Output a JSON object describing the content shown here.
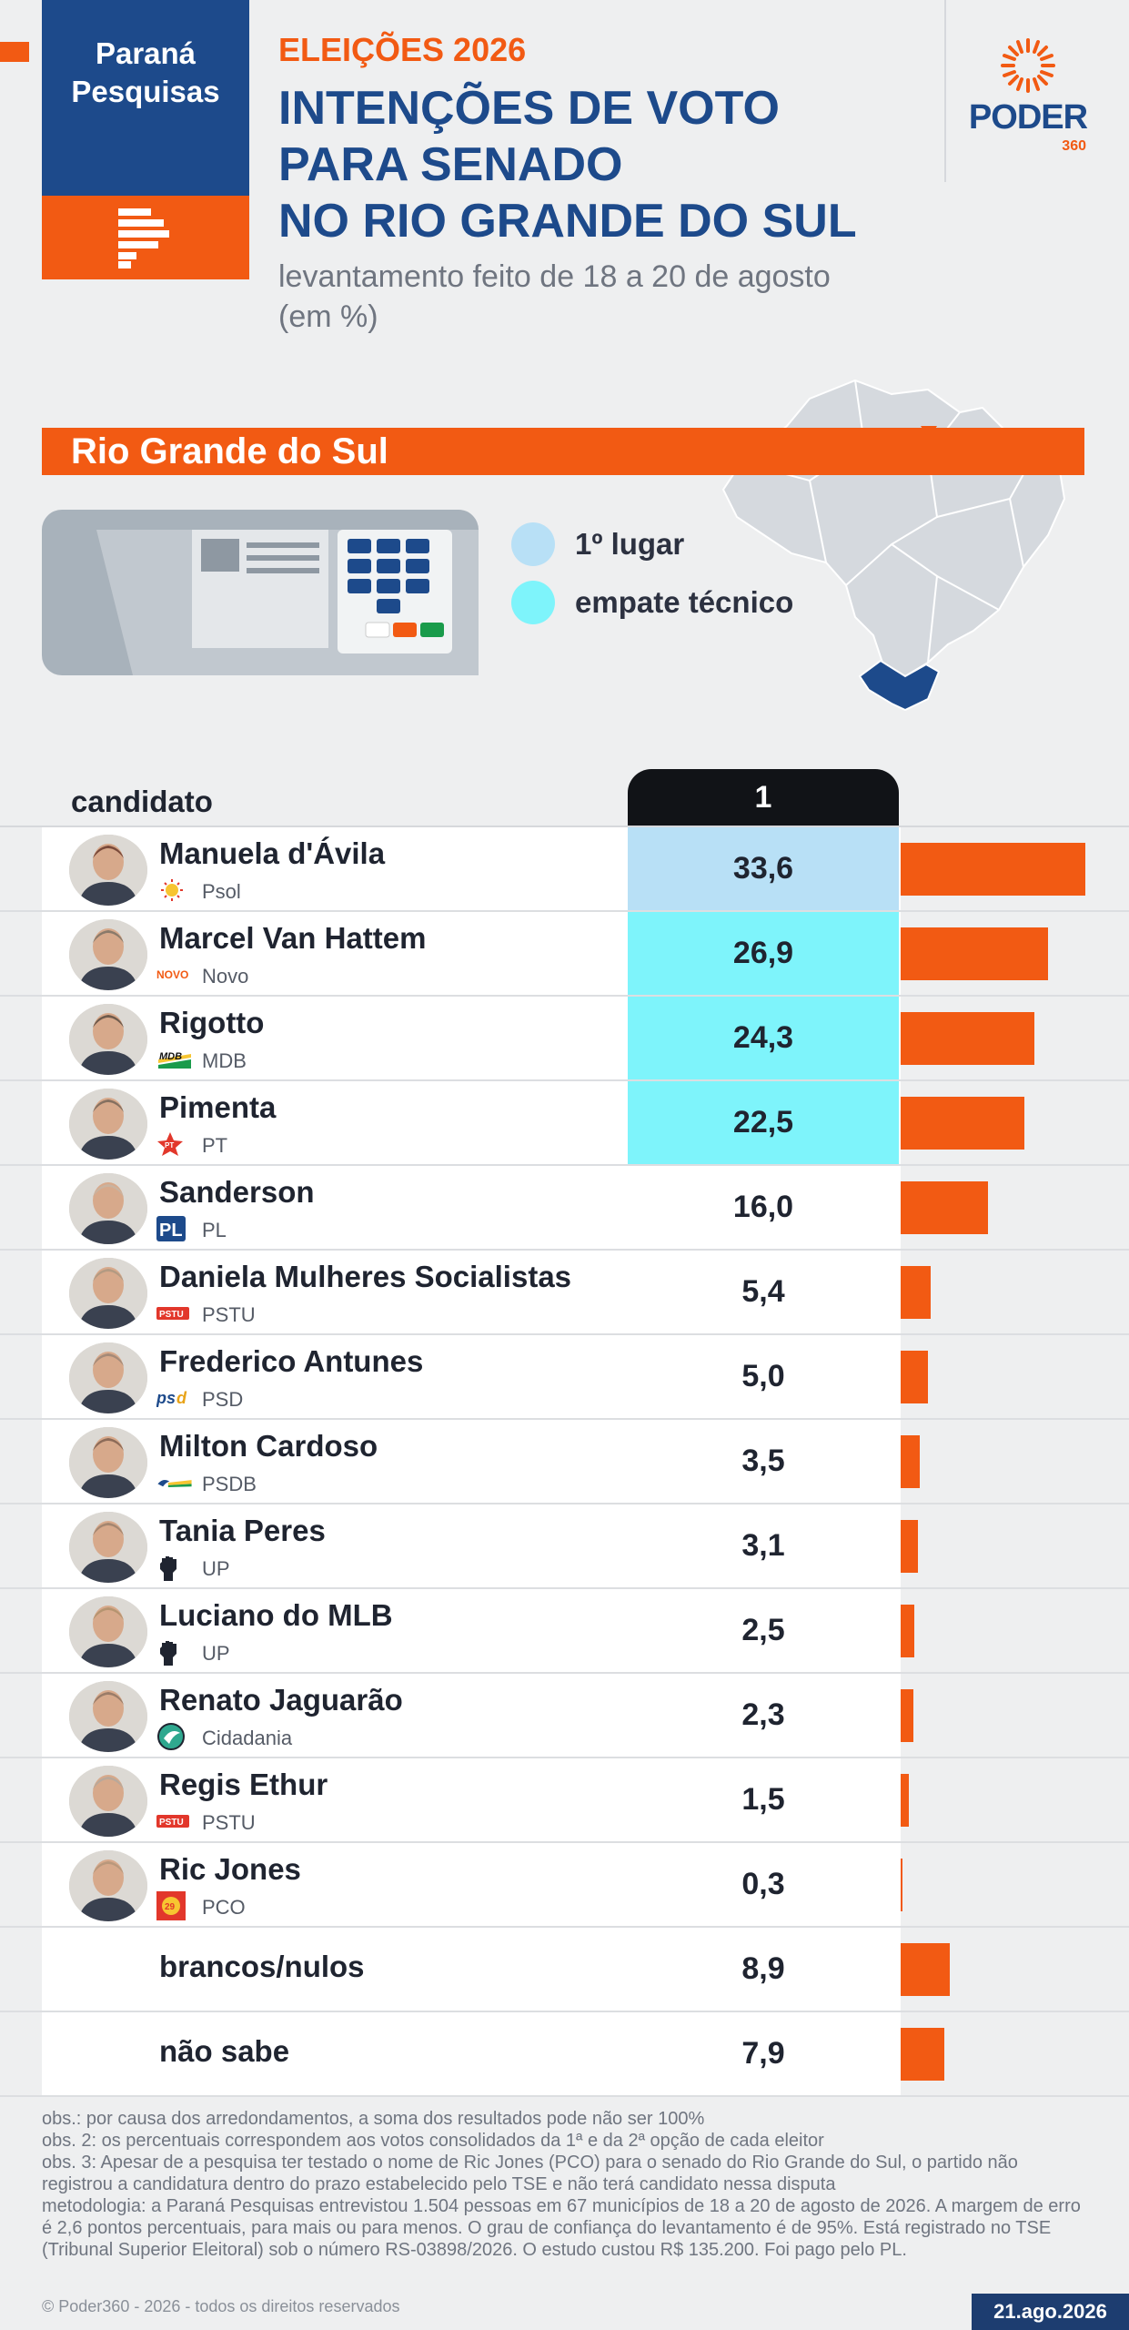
{
  "header": {
    "pollster_line1": "Paraná",
    "pollster_line2": "Pesquisas",
    "kicker": "ELEIÇÕES 2026",
    "title_lines": [
      "INTENÇÕES DE VOTO",
      "PARA SENADO",
      "NO RIO GRANDE DO SUL"
    ],
    "subtitle_lines": [
      "levantamento feito de 18 a 20 de agosto",
      "(em %)"
    ],
    "publisher": "PODER",
    "publisher_suffix": "360"
  },
  "region": "Rio Grande do Sul",
  "legend": [
    {
      "label": "1º lugar",
      "color": "#b8e0f6"
    },
    {
      "label": "empate técnico",
      "color": "#7ef4fb"
    }
  ],
  "table": {
    "column_label": "candidato",
    "round_label": "1"
  },
  "colors": {
    "accent": "#f25a13",
    "brand_blue": "#1d4a8b",
    "first_place": "#b8e0f6",
    "tie": "#7ef4fb",
    "bar": "#f25a13"
  },
  "chart_data": {
    "type": "bar",
    "orientation": "horizontal",
    "categories": [
      "Manuela d'Ávila",
      "Marcel Van Hattem",
      "Rigotto",
      "Pimenta",
      "Sanderson",
      "Daniela Mulheres Socialistas",
      "Frederico Antunes",
      "Milton Cardoso",
      "Tania Peres",
      "Luciano do MLB",
      "Renato Jaguarão",
      "Regis Ethur",
      "Ric Jones",
      "brancos/nulos",
      "não sabe"
    ],
    "parties": [
      "Psol",
      "Novo",
      "MDB",
      "PT",
      "PL",
      "PSTU",
      "PSD",
      "PSDB",
      "UP",
      "UP",
      "Cidadania",
      "PSTU",
      "PCO",
      "",
      ""
    ],
    "party_icons": [
      "psol-icon",
      "novo-icon",
      "mdb-icon",
      "pt-star-icon",
      "pl-icon",
      "pstu-icon",
      "psd-icon",
      "psdb-icon",
      "up-fist-icon",
      "up-fist-icon",
      "cidadania-icon",
      "pstu-icon",
      "pco-icon",
      "",
      ""
    ],
    "value_labels": [
      "33,6",
      "26,9",
      "24,3",
      "22,5",
      "16,0",
      "5,4",
      "5,0",
      "3,5",
      "3,1",
      "2,5",
      "2,3",
      "1,5",
      "0,3",
      "8,9",
      "7,9"
    ],
    "values": [
      33.6,
      26.9,
      24.3,
      22.5,
      16.0,
      5.4,
      5.0,
      3.5,
      3.1,
      2.5,
      2.3,
      1.5,
      0.3,
      8.9,
      7.9
    ],
    "highlight": [
      "first",
      "tie",
      "tie",
      "tie",
      "",
      "",
      "",
      "",
      "",
      "",
      "",
      "",
      "",
      "",
      ""
    ],
    "series": [
      {
        "name": "1",
        "values": [
          33.6,
          26.9,
          24.3,
          22.5,
          16.0,
          5.4,
          5.0,
          3.5,
          3.1,
          2.5,
          2.3,
          1.5,
          0.3,
          8.9,
          7.9
        ]
      }
    ],
    "xlim": [
      0,
      34
    ]
  },
  "notes": [
    "obs.: por causa dos arredondamentos, a soma dos resultados pode não ser 100%",
    "obs. 2: os percentuais correspondem aos votos consolidados da 1ª e da 2ª opção de cada eleitor",
    "obs. 3: Apesar de a pesquisa ter testado o nome de Ric Jones (PCO) para o senado do Rio Grande do Sul, o partido não registrou a candidatura dentro do prazo estabelecido pelo TSE e não terá candidato nessa disputa",
    "metodologia: a Paraná Pesquisas entrevistou 1.504 pessoas em 67 municípios de 18 a 20 de agosto de 2026. A margem de erro é 2,6 pontos percentuais, para mais ou para menos. O grau de confiança do levantamento é de 95%. Está registrado no TSE (Tribunal Superior Eleitoral) sob o número RS-03898/2026. O estudo custou R$ 135.200. Foi pago pelo PL."
  ],
  "footer": {
    "copyright": "© Poder360 - 2026 - todos os direitos reservados",
    "date": "21.ago.2026"
  }
}
